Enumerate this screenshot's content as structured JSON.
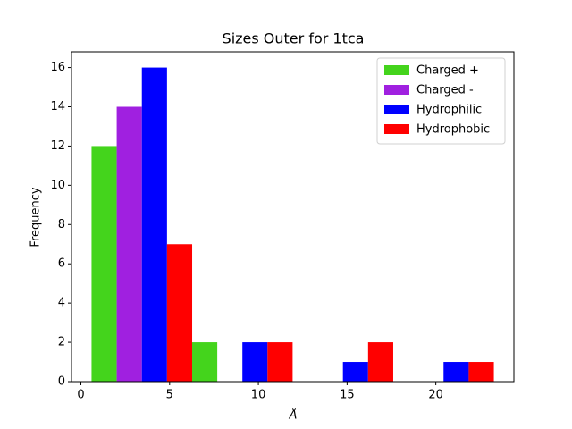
{
  "chart_data": {
    "type": "histogram",
    "title": "Sizes Outer for 1tca",
    "xlabel": "Å",
    "ylabel": "Frequency",
    "bins": [
      0.6,
      6.27,
      11.93,
      17.6,
      23.27
    ],
    "series": [
      {
        "name": "Charged +",
        "color": "#44d41c",
        "values": [
          12,
          2,
          0,
          0
        ]
      },
      {
        "name": "Charged -",
        "color": "#a020e0",
        "values": [
          14,
          0,
          0,
          0
        ]
      },
      {
        "name": "Hydrophilic",
        "color": "#0000ff",
        "values": [
          16,
          2,
          1,
          1
        ]
      },
      {
        "name": "Hydrophobic",
        "color": "#ff0000",
        "values": [
          7,
          2,
          2,
          1
        ]
      }
    ],
    "xlim": [
      -0.53,
      24.4
    ],
    "xticks": [
      0,
      5,
      10,
      15,
      20
    ],
    "ylim": [
      0,
      16.8
    ],
    "yticks": [
      0,
      2,
      4,
      6,
      8,
      10,
      12,
      14,
      16
    ],
    "legend": "upper right"
  }
}
